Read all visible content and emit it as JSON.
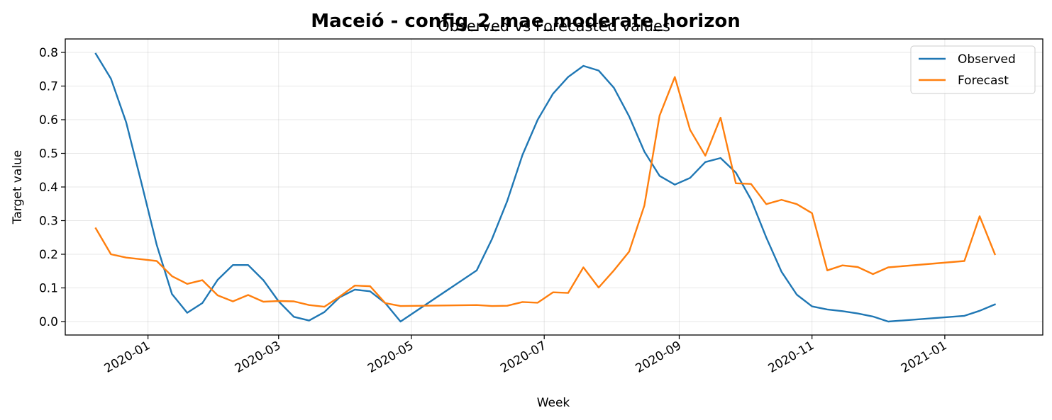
{
  "chart_data": {
    "type": "line",
    "title": "Maceió - config_2_mae_moderate_horizon",
    "subtitle": "Observed vs Forecasted values",
    "xlabel": "Week",
    "ylabel": "Target value",
    "x_range": [
      "2019-11-24",
      "2021-02-15"
    ],
    "ylim": [
      -0.04,
      0.84
    ],
    "yticks": [
      0.0,
      0.1,
      0.2,
      0.3,
      0.4,
      0.5,
      0.6,
      0.7,
      0.8
    ],
    "ytick_labels": [
      "0.0",
      "0.1",
      "0.2",
      "0.3",
      "0.4",
      "0.5",
      "0.6",
      "0.7",
      "0.8"
    ],
    "xticks": [
      "2020-01-01",
      "2020-03-01",
      "2020-05-01",
      "2020-07-01",
      "2020-09-01",
      "2020-11-01",
      "2021-01-01"
    ],
    "xtick_labels": [
      "2020-01",
      "2020-03",
      "2020-05",
      "2020-07",
      "2020-09",
      "2020-11",
      "2021-01"
    ],
    "grid": true,
    "legend_position": "top-right",
    "series": [
      {
        "name": "Observed",
        "color": "#1f77b4",
        "points": [
          [
            "2019-12-08",
            0.796
          ],
          [
            "2019-12-15",
            0.722
          ],
          [
            "2019-12-22",
            0.592
          ],
          [
            "2019-12-29",
            0.412
          ],
          [
            "2020-01-05",
            0.228
          ],
          [
            "2020-01-12",
            0.082
          ],
          [
            "2020-01-19",
            0.026
          ],
          [
            "2020-01-26",
            0.055
          ],
          [
            "2020-02-02",
            0.124
          ],
          [
            "2020-02-09",
            0.168
          ],
          [
            "2020-02-16",
            0.168
          ],
          [
            "2020-02-23",
            0.123
          ],
          [
            "2020-03-01",
            0.06
          ],
          [
            "2020-03-08",
            0.014
          ],
          [
            "2020-03-15",
            0.003
          ],
          [
            "2020-03-22",
            0.028
          ],
          [
            "2020-03-29",
            0.072
          ],
          [
            "2020-04-05",
            0.095
          ],
          [
            "2020-04-12",
            0.09
          ],
          [
            "2020-04-19",
            0.055
          ],
          [
            "2020-04-26",
            0.0
          ],
          [
            "2020-05-31",
            0.152
          ],
          [
            "2020-06-07",
            0.245
          ],
          [
            "2020-06-14",
            0.358
          ],
          [
            "2020-06-21",
            0.495
          ],
          [
            "2020-06-28",
            0.6
          ],
          [
            "2020-07-05",
            0.677
          ],
          [
            "2020-07-12",
            0.727
          ],
          [
            "2020-07-19",
            0.76
          ],
          [
            "2020-07-26",
            0.746
          ],
          [
            "2020-08-02",
            0.695
          ],
          [
            "2020-08-09",
            0.61
          ],
          [
            "2020-08-16",
            0.505
          ],
          [
            "2020-08-23",
            0.433
          ],
          [
            "2020-08-30",
            0.407
          ],
          [
            "2020-09-06",
            0.427
          ],
          [
            "2020-09-13",
            0.474
          ],
          [
            "2020-09-20",
            0.486
          ],
          [
            "2020-09-27",
            0.443
          ],
          [
            "2020-10-04",
            0.363
          ],
          [
            "2020-10-11",
            0.25
          ],
          [
            "2020-10-18",
            0.148
          ],
          [
            "2020-10-25",
            0.08
          ],
          [
            "2020-11-01",
            0.045
          ],
          [
            "2020-11-08",
            0.036
          ],
          [
            "2020-11-15",
            0.031
          ],
          [
            "2020-11-22",
            0.024
          ],
          [
            "2020-11-29",
            0.015
          ],
          [
            "2020-12-06",
            0.0
          ],
          [
            "2021-01-10",
            0.017
          ],
          [
            "2021-01-17",
            0.032
          ],
          [
            "2021-01-24",
            0.051
          ]
        ]
      },
      {
        "name": "Forecast",
        "color": "#ff7f0e",
        "points": [
          [
            "2019-12-08",
            0.277
          ],
          [
            "2019-12-15",
            0.2
          ],
          [
            "2019-12-22",
            0.19
          ],
          [
            "2019-12-29",
            0.185
          ],
          [
            "2020-01-05",
            0.18
          ],
          [
            "2020-01-12",
            0.135
          ],
          [
            "2020-01-19",
            0.112
          ],
          [
            "2020-01-26",
            0.123
          ],
          [
            "2020-02-02",
            0.078
          ],
          [
            "2020-02-09",
            0.06
          ],
          [
            "2020-02-16",
            0.079
          ],
          [
            "2020-02-23",
            0.059
          ],
          [
            "2020-03-01",
            0.061
          ],
          [
            "2020-03-08",
            0.06
          ],
          [
            "2020-03-15",
            0.049
          ],
          [
            "2020-03-22",
            0.044
          ],
          [
            "2020-03-29",
            0.074
          ],
          [
            "2020-04-05",
            0.107
          ],
          [
            "2020-04-12",
            0.105
          ],
          [
            "2020-04-19",
            0.055
          ],
          [
            "2020-04-26",
            0.046
          ],
          [
            "2020-05-31",
            0.049
          ],
          [
            "2020-06-07",
            0.046
          ],
          [
            "2020-06-14",
            0.047
          ],
          [
            "2020-06-21",
            0.058
          ],
          [
            "2020-06-28",
            0.056
          ],
          [
            "2020-07-05",
            0.087
          ],
          [
            "2020-07-12",
            0.085
          ],
          [
            "2020-07-19",
            0.161
          ],
          [
            "2020-07-26",
            0.101
          ],
          [
            "2020-08-02",
            0.152
          ],
          [
            "2020-08-09",
            0.208
          ],
          [
            "2020-08-16",
            0.345
          ],
          [
            "2020-08-23",
            0.612
          ],
          [
            "2020-08-30",
            0.727
          ],
          [
            "2020-09-06",
            0.57
          ],
          [
            "2020-09-13",
            0.493
          ],
          [
            "2020-09-20",
            0.606
          ],
          [
            "2020-09-27",
            0.411
          ],
          [
            "2020-10-04",
            0.409
          ],
          [
            "2020-10-11",
            0.349
          ],
          [
            "2020-10-18",
            0.362
          ],
          [
            "2020-10-25",
            0.349
          ],
          [
            "2020-11-01",
            0.322
          ],
          [
            "2020-11-08",
            0.152
          ],
          [
            "2020-11-15",
            0.167
          ],
          [
            "2020-11-22",
            0.162
          ],
          [
            "2020-11-29",
            0.141
          ],
          [
            "2020-12-06",
            0.161
          ],
          [
            "2021-01-10",
            0.18
          ],
          [
            "2021-01-17",
            0.313
          ],
          [
            "2021-01-24",
            0.2
          ]
        ]
      }
    ]
  }
}
